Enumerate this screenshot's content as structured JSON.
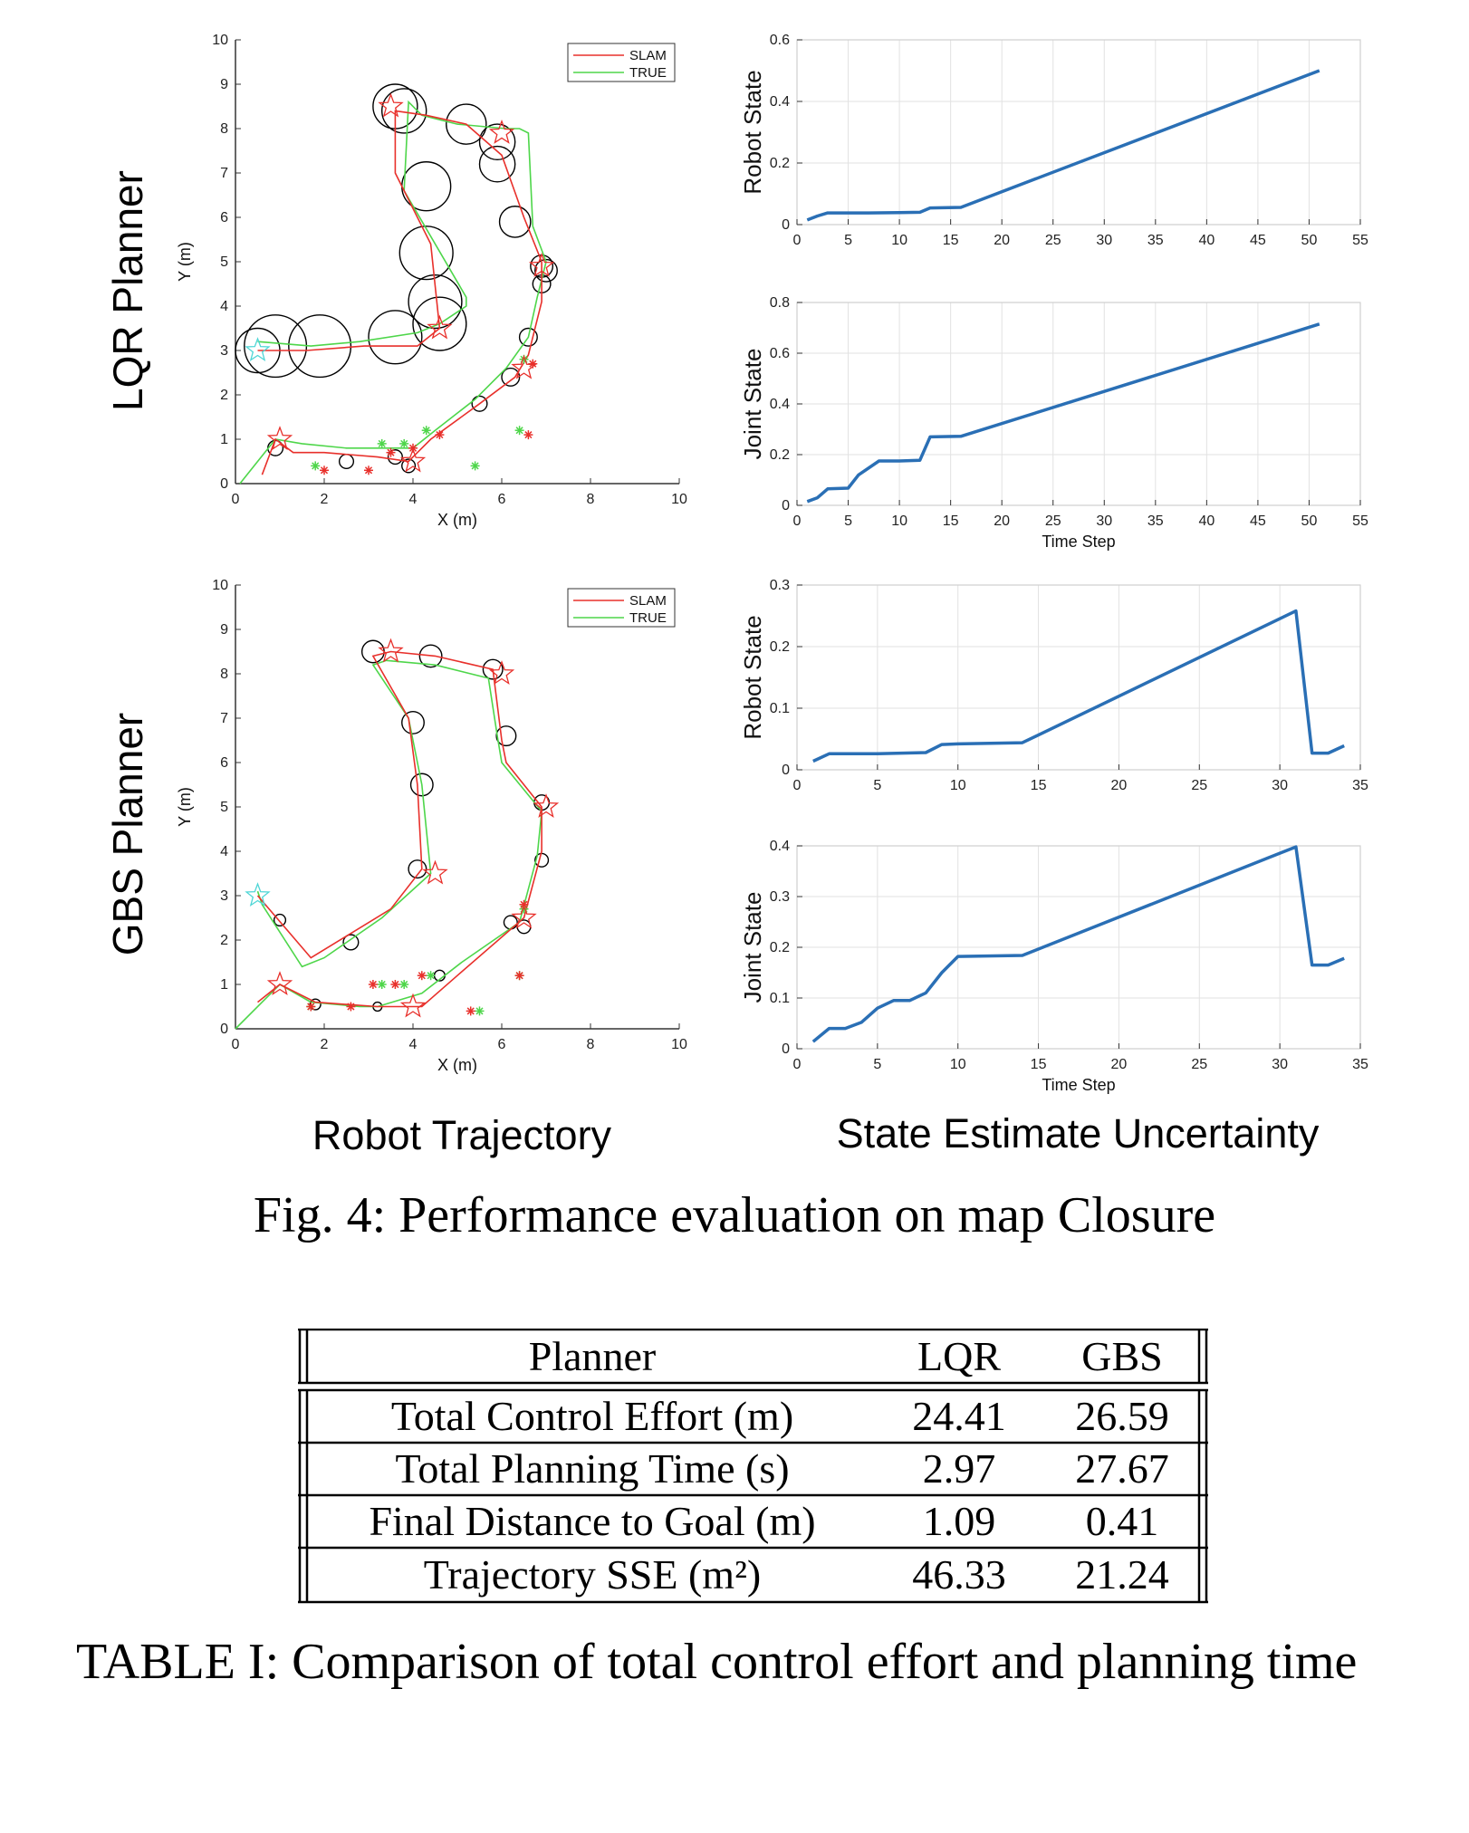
{
  "row_labels": [
    "LQR Planner",
    "GBS Planner"
  ],
  "column_labels": {
    "left": "Robot Trajectory",
    "right": "State Estimate Uncertainty"
  },
  "figure_caption": "Fig. 4: Performance evaluation on map Closure",
  "table": {
    "header": [
      "Planner",
      "LQR",
      "GBS"
    ],
    "rows": [
      [
        "Total Control Effort (m)",
        "24.41",
        "26.59"
      ],
      [
        "Total Planning Time (s)",
        "2.97",
        "27.67"
      ],
      [
        "Final Distance to Goal (m)",
        "1.09",
        "0.41"
      ],
      [
        "Trajectory SSE (m²)",
        "46.33",
        "21.24"
      ]
    ],
    "caption": "TABLE I: Comparison of total control effort and planning time"
  },
  "colors": {
    "slam": "#e8302b",
    "true": "#4ed64a",
    "uncertainty": "#2a6fb5",
    "landmark": "#000000",
    "start": "#4fd6d6"
  },
  "chart_data": [
    {
      "type": "scatter",
      "id": "lqr-trajectory",
      "xlabel": "X (m)",
      "ylabel": "Y (m)",
      "xlim": [
        0,
        10
      ],
      "ylim": [
        0,
        10
      ],
      "xticks": [
        0,
        2,
        4,
        6,
        8,
        10
      ],
      "yticks": [
        0,
        1,
        2,
        3,
        4,
        5,
        6,
        7,
        8,
        9,
        10
      ],
      "legend": [
        "SLAM",
        "TRUE"
      ],
      "legend_position": "top-right",
      "grid": false,
      "series": [
        {
          "name": "SLAM",
          "x": [
            0.6,
            0.9,
            1.3,
            2.0,
            3.2,
            3.9,
            4.1,
            4.4,
            5.5,
            6.3,
            6.6,
            6.9,
            6.9,
            6.5,
            6.0,
            5.2,
            4.3,
            3.6,
            3.6,
            4.4,
            4.6,
            4.1,
            2.9,
            1.6,
            0.5
          ],
          "y": [
            0.2,
            1.0,
            0.7,
            0.7,
            0.6,
            0.5,
            0.7,
            1.0,
            1.8,
            2.4,
            2.9,
            4.1,
            5.0,
            6.0,
            7.4,
            8.1,
            8.3,
            8.4,
            7.0,
            5.4,
            3.5,
            3.1,
            3.1,
            3.0,
            3.0
          ]
        },
        {
          "name": "TRUE",
          "x": [
            0.1,
            0.5,
            0.9,
            1.5,
            2.5,
            3.6,
            4.0,
            4.5,
            5.4,
            6.1,
            6.6,
            6.8,
            7.0,
            6.7,
            6.6,
            6.4,
            6.1,
            5.0,
            4.2,
            3.9,
            3.8,
            5.2,
            5.2,
            4.6,
            4.1,
            2.8,
            1.7,
            0.5
          ],
          "y": [
            0.0,
            0.5,
            1.0,
            0.9,
            0.8,
            0.8,
            0.8,
            1.2,
            1.9,
            2.6,
            3.3,
            4.2,
            5.0,
            5.8,
            7.9,
            8.0,
            8.0,
            8.1,
            8.3,
            8.6,
            6.6,
            4.2,
            4.0,
            3.6,
            3.4,
            3.2,
            3.1,
            3.2
          ]
        }
      ],
      "landmarks": [
        {
          "x": 0.5,
          "y": 3.0,
          "r": 0.5
        },
        {
          "x": 0.9,
          "y": 3.1,
          "r": 0.7
        },
        {
          "x": 1.9,
          "y": 3.1,
          "r": 0.7
        },
        {
          "x": 3.6,
          "y": 3.3,
          "r": 0.6
        },
        {
          "x": 4.6,
          "y": 3.6,
          "r": 0.6
        },
        {
          "x": 4.5,
          "y": 4.1,
          "r": 0.6
        },
        {
          "x": 4.3,
          "y": 5.2,
          "r": 0.6
        },
        {
          "x": 4.3,
          "y": 6.7,
          "r": 0.55
        },
        {
          "x": 3.6,
          "y": 8.5,
          "r": 0.5
        },
        {
          "x": 3.8,
          "y": 8.4,
          "r": 0.5
        },
        {
          "x": 5.2,
          "y": 8.1,
          "r": 0.45
        },
        {
          "x": 5.9,
          "y": 7.7,
          "r": 0.4
        },
        {
          "x": 5.9,
          "y": 7.2,
          "r": 0.4
        },
        {
          "x": 6.3,
          "y": 5.9,
          "r": 0.35
        },
        {
          "x": 6.9,
          "y": 4.9,
          "r": 0.25
        },
        {
          "x": 7.0,
          "y": 4.8,
          "r": 0.25
        },
        {
          "x": 6.9,
          "y": 4.5,
          "r": 0.2
        },
        {
          "x": 6.6,
          "y": 3.3,
          "r": 0.2
        },
        {
          "x": 6.2,
          "y": 2.4,
          "r": 0.2
        },
        {
          "x": 5.5,
          "y": 1.8,
          "r": 0.17
        },
        {
          "x": 0.9,
          "y": 0.8,
          "r": 0.17
        },
        {
          "x": 2.5,
          "y": 0.5,
          "r": 0.16
        },
        {
          "x": 3.6,
          "y": 0.6,
          "r": 0.16
        },
        {
          "x": 3.9,
          "y": 0.4,
          "r": 0.15
        }
      ],
      "waypoints": [
        {
          "x": 0.5,
          "y": 3.0
        },
        {
          "x": 1.0,
          "y": 1.0
        },
        {
          "x": 3.5,
          "y": 8.5
        },
        {
          "x": 6.0,
          "y": 7.9
        },
        {
          "x": 6.9,
          "y": 4.9
        },
        {
          "x": 4.6,
          "y": 3.5
        },
        {
          "x": 6.5,
          "y": 2.6
        },
        {
          "x": 4.0,
          "y": 0.5
        }
      ],
      "meas_true": [
        {
          "x": 1.8,
          "y": 0.4
        },
        {
          "x": 3.3,
          "y": 0.9
        },
        {
          "x": 3.8,
          "y": 0.9
        },
        {
          "x": 4.3,
          "y": 1.2
        },
        {
          "x": 5.4,
          "y": 0.4
        },
        {
          "x": 6.4,
          "y": 1.2
        },
        {
          "x": 6.5,
          "y": 2.8
        }
      ],
      "meas_slam": [
        {
          "x": 2.0,
          "y": 0.3
        },
        {
          "x": 3.0,
          "y": 0.3
        },
        {
          "x": 3.5,
          "y": 0.7
        },
        {
          "x": 4.0,
          "y": 0.8
        },
        {
          "x": 4.6,
          "y": 1.1
        },
        {
          "x": 6.6,
          "y": 1.1
        },
        {
          "x": 6.7,
          "y": 2.7
        }
      ]
    },
    {
      "type": "line",
      "id": "lqr-robot-state",
      "ylabel": "Robot State",
      "xlabel": "",
      "xlim": [
        0,
        55
      ],
      "ylim": [
        0,
        0.6
      ],
      "xticks": [
        0,
        5,
        10,
        15,
        20,
        25,
        30,
        35,
        40,
        45,
        50,
        55
      ],
      "yticks": [
        0,
        0.2,
        0.4,
        0.6
      ],
      "grid": true,
      "x": [
        1,
        2,
        3,
        5,
        7,
        10,
        12,
        13,
        16,
        51
      ],
      "y": [
        0.015,
        0.028,
        0.038,
        0.038,
        0.038,
        0.039,
        0.04,
        0.054,
        0.056,
        0.5
      ]
    },
    {
      "type": "line",
      "id": "lqr-joint-state",
      "ylabel": "Joint State",
      "xlabel": "Time Step",
      "xlim": [
        0,
        55
      ],
      "ylim": [
        0,
        0.8
      ],
      "xticks": [
        0,
        5,
        10,
        15,
        20,
        25,
        30,
        35,
        40,
        45,
        50,
        55
      ],
      "yticks": [
        0,
        0.2,
        0.4,
        0.6,
        0.8
      ],
      "grid": true,
      "x": [
        1,
        2,
        3,
        5,
        6,
        8,
        10,
        12,
        13,
        16,
        51
      ],
      "y": [
        0.015,
        0.03,
        0.065,
        0.068,
        0.12,
        0.175,
        0.175,
        0.178,
        0.27,
        0.272,
        0.715
      ]
    },
    {
      "type": "scatter",
      "id": "gbs-trajectory",
      "xlabel": "X (m)",
      "ylabel": "Y (m)",
      "xlim": [
        0,
        10
      ],
      "ylim": [
        0,
        10
      ],
      "xticks": [
        0,
        2,
        4,
        6,
        8,
        10
      ],
      "yticks": [
        0,
        1,
        2,
        3,
        4,
        5,
        6,
        7,
        8,
        9,
        10
      ],
      "legend": [
        "SLAM",
        "TRUE"
      ],
      "legend_position": "top-right",
      "grid": false,
      "series": [
        {
          "name": "SLAM",
          "x": [
            0.5,
            1.0,
            1.8,
            3.2,
            4.2,
            5.0,
            6.5,
            6.9,
            6.9,
            6.1,
            6.0,
            5.8,
            4.5,
            3.5,
            3.1,
            3.9,
            4.1,
            4.2,
            3.5,
            1.7,
            0.5
          ],
          "y": [
            0.6,
            1.0,
            0.6,
            0.5,
            0.5,
            1.2,
            2.5,
            4.0,
            5.0,
            6.0,
            6.5,
            8.1,
            8.4,
            8.5,
            8.4,
            7.0,
            5.5,
            3.6,
            2.7,
            1.6,
            3.0
          ]
        },
        {
          "name": "TRUE",
          "x": [
            0.0,
            0.6,
            1.0,
            1.7,
            2.8,
            3.2,
            4.2,
            5.1,
            6.4,
            6.8,
            6.9,
            6.0,
            5.9,
            5.7,
            4.5,
            3.4,
            3.1,
            3.9,
            4.2,
            4.4,
            3.3,
            2.0,
            1.5,
            0.6,
            0.5
          ],
          "y": [
            0.0,
            0.6,
            1.0,
            0.6,
            0.5,
            0.5,
            0.8,
            1.5,
            2.4,
            3.9,
            4.9,
            6.0,
            6.6,
            7.9,
            8.2,
            8.3,
            8.2,
            7.0,
            5.5,
            3.5,
            2.5,
            1.6,
            1.4,
            2.8,
            3.1
          ]
        }
      ],
      "landmarks": [
        {
          "x": 3.1,
          "y": 8.5,
          "r": 0.25
        },
        {
          "x": 4.4,
          "y": 8.4,
          "r": 0.25
        },
        {
          "x": 5.8,
          "y": 8.1,
          "r": 0.22
        },
        {
          "x": 4.0,
          "y": 6.9,
          "r": 0.25
        },
        {
          "x": 6.1,
          "y": 6.6,
          "r": 0.22
        },
        {
          "x": 4.2,
          "y": 5.5,
          "r": 0.25
        },
        {
          "x": 4.1,
          "y": 3.6,
          "r": 0.2
        },
        {
          "x": 6.9,
          "y": 5.1,
          "r": 0.17
        },
        {
          "x": 6.9,
          "y": 3.8,
          "r": 0.15
        },
        {
          "x": 6.2,
          "y": 2.4,
          "r": 0.15
        },
        {
          "x": 6.5,
          "y": 2.3,
          "r": 0.15
        },
        {
          "x": 2.6,
          "y": 1.95,
          "r": 0.17
        },
        {
          "x": 1.0,
          "y": 2.45,
          "r": 0.13
        },
        {
          "x": 4.6,
          "y": 1.2,
          "r": 0.12
        },
        {
          "x": 1.8,
          "y": 0.55,
          "r": 0.12
        },
        {
          "x": 3.2,
          "y": 0.5,
          "r": 0.1
        }
      ],
      "waypoints": [
        {
          "x": 0.5,
          "y": 3.0
        },
        {
          "x": 1.0,
          "y": 1.0
        },
        {
          "x": 3.5,
          "y": 8.5
        },
        {
          "x": 6.0,
          "y": 8.0
        },
        {
          "x": 7.0,
          "y": 5.0
        },
        {
          "x": 4.5,
          "y": 3.5
        },
        {
          "x": 6.5,
          "y": 2.5
        },
        {
          "x": 4.0,
          "y": 0.5
        }
      ],
      "meas_true": [
        {
          "x": 1.7,
          "y": 0.5
        },
        {
          "x": 3.3,
          "y": 1.0
        },
        {
          "x": 3.8,
          "y": 1.0
        },
        {
          "x": 4.4,
          "y": 1.2
        },
        {
          "x": 5.5,
          "y": 0.4
        },
        {
          "x": 6.4,
          "y": 1.2
        },
        {
          "x": 6.5,
          "y": 2.7
        }
      ],
      "meas_slam": [
        {
          "x": 1.7,
          "y": 0.5
        },
        {
          "x": 2.6,
          "y": 0.5
        },
        {
          "x": 3.1,
          "y": 1.0
        },
        {
          "x": 3.6,
          "y": 1.0
        },
        {
          "x": 4.2,
          "y": 1.2
        },
        {
          "x": 5.3,
          "y": 0.4
        },
        {
          "x": 6.4,
          "y": 1.2
        },
        {
          "x": 6.5,
          "y": 2.8
        }
      ]
    },
    {
      "type": "line",
      "id": "gbs-robot-state",
      "ylabel": "Robot State",
      "xlabel": "",
      "xlim": [
        0,
        35
      ],
      "ylim": [
        0,
        0.3
      ],
      "xticks": [
        0,
        5,
        10,
        15,
        20,
        25,
        30,
        35
      ],
      "yticks": [
        0,
        0.1,
        0.2,
        0.3
      ],
      "grid": true,
      "x": [
        1,
        2,
        5,
        8,
        9,
        10,
        14,
        31,
        32,
        33,
        34
      ],
      "y": [
        0.014,
        0.026,
        0.026,
        0.028,
        0.041,
        0.042,
        0.044,
        0.258,
        0.027,
        0.027,
        0.039
      ]
    },
    {
      "type": "line",
      "id": "gbs-joint-state",
      "ylabel": "Joint State",
      "xlabel": "Time Step",
      "xlim": [
        0,
        35
      ],
      "ylim": [
        0,
        0.4
      ],
      "xticks": [
        0,
        5,
        10,
        15,
        20,
        25,
        30,
        35
      ],
      "yticks": [
        0,
        0.1,
        0.2,
        0.3,
        0.4
      ],
      "grid": true,
      "x": [
        1,
        2,
        3,
        4,
        5,
        6,
        7,
        8,
        9,
        10,
        14,
        31,
        32,
        33,
        34
      ],
      "y": [
        0.014,
        0.04,
        0.04,
        0.052,
        0.08,
        0.095,
        0.095,
        0.11,
        0.15,
        0.182,
        0.184,
        0.398,
        0.165,
        0.165,
        0.178
      ]
    }
  ]
}
